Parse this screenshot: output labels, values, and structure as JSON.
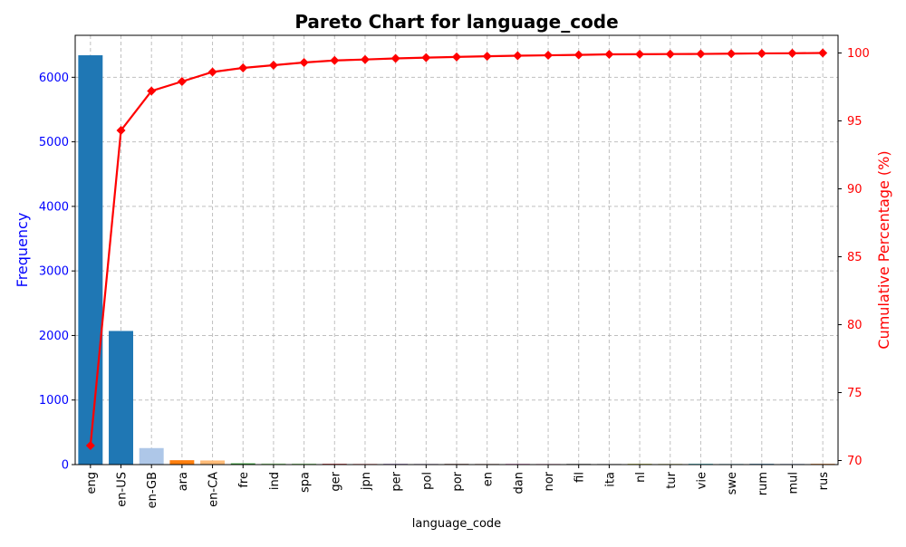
{
  "chart_data": {
    "type": "bar",
    "title": "Pareto Chart for language_code",
    "xlabel": "language_code",
    "ylabel": "Frequency",
    "y2label": "Cumulative Percentage (%)",
    "categories": [
      "eng",
      "en-US",
      "en-GB",
      "ara",
      "en-CA",
      "fre",
      "ind",
      "spa",
      "ger",
      "jpn",
      "per",
      "pol",
      "por",
      "en",
      "dan",
      "nor",
      "fil",
      "ita",
      "nl",
      "tur",
      "vie",
      "swe",
      "rum",
      "mul",
      "rus"
    ],
    "series": [
      {
        "values": [
          6341,
          2070,
          256,
          68,
          64,
          19,
          16,
          15,
          12,
          7,
          6,
          5,
          5,
          4,
          3,
          3,
          3,
          3,
          1,
          1,
          1,
          1,
          1,
          1,
          1
        ],
        "axis": "left",
        "bar_colors": [
          "#1f77b4",
          "#1f77b4",
          "#aec7e8",
          "#ff7f0e",
          "#ffbb78",
          "#2ca02c",
          "#98df8a",
          "#98df8a",
          "#d62728",
          "#ff9896",
          "#9467bd",
          "#c5b0d5",
          "#8c564b",
          "#c49c94",
          "#e377c2",
          "#f7b6d2",
          "#7f7f7f",
          "#c7c7c7",
          "#bcbd22",
          "#dbdb8d",
          "#17becf",
          "#9edae5",
          "#1f77b4",
          "#aec7e8",
          "#ff7f0e"
        ]
      },
      {
        "type": "line",
        "axis": "right",
        "color": "#ff0000",
        "values": [
          71.1,
          94.3,
          97.2,
          97.9,
          98.6,
          98.9,
          99.1,
          99.3,
          99.45,
          99.52,
          99.6,
          99.66,
          99.71,
          99.76,
          99.8,
          99.83,
          99.86,
          99.9,
          99.91,
          99.92,
          99.93,
          99.95,
          99.97,
          99.98,
          100.0
        ]
      }
    ],
    "ylim": [
      0,
      6650
    ],
    "y2lim": [
      69.7,
      101.3
    ],
    "yticks": [
      0,
      1000,
      2000,
      3000,
      4000,
      5000,
      6000
    ],
    "y2ticks": [
      70,
      75,
      80,
      85,
      90,
      95,
      100
    ],
    "grid": true,
    "axis_colors": {
      "left": "#0000ff",
      "right": "#ff0000"
    }
  }
}
